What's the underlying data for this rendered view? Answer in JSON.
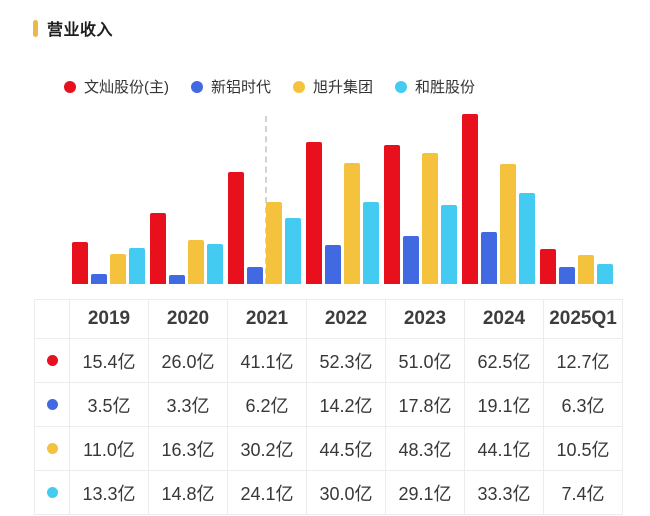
{
  "header": {
    "title": "营业收入"
  },
  "colors": {
    "title_marker": "#e9b949",
    "series_red": "#e8101c",
    "series_blue": "#4169e1",
    "series_yellow": "#f4c23d",
    "series_cyan": "#44cbf1",
    "dashed_line": "#d2d2d2",
    "table_border": "#ececec"
  },
  "chart_data": {
    "type": "bar",
    "title": "营业收入",
    "unit": "亿",
    "categories": [
      "2019",
      "2020",
      "2021",
      "2022",
      "2023",
      "2024",
      "2025Q1"
    ],
    "series": [
      {
        "name": "文灿股份(主)",
        "color": "#e8101c",
        "values": [
          15.4,
          26.0,
          41.1,
          52.3,
          51.0,
          62.5,
          12.7
        ]
      },
      {
        "name": "新铝时代",
        "color": "#4169e1",
        "values": [
          3.5,
          3.3,
          6.2,
          14.2,
          17.8,
          19.1,
          6.3
        ]
      },
      {
        "name": "旭升集团",
        "color": "#f4c23d",
        "values": [
          11.0,
          16.3,
          30.2,
          44.5,
          48.3,
          44.1,
          10.5
        ]
      },
      {
        "name": "和胜股份",
        "color": "#44cbf1",
        "values": [
          13.3,
          14.8,
          24.1,
          30.0,
          29.1,
          33.3,
          7.4
        ]
      }
    ],
    "ylim": [
      0,
      62.5
    ],
    "grid": false,
    "legend_position": "top",
    "annotations": [
      "vertical dashed divider line inside the 2021 group, before the yellow bar"
    ]
  },
  "table": {
    "columns": [
      "2019",
      "2020",
      "2021",
      "2022",
      "2023",
      "2024",
      "2025Q1"
    ],
    "rows": [
      {
        "series": "文灿股份(主)",
        "color": "#e8101c",
        "values": [
          "15.4亿",
          "26.0亿",
          "41.1亿",
          "52.3亿",
          "51.0亿",
          "62.5亿",
          "12.7亿"
        ]
      },
      {
        "series": "新铝时代",
        "color": "#4169e1",
        "values": [
          "3.5亿",
          "3.3亿",
          "6.2亿",
          "14.2亿",
          "17.8亿",
          "19.1亿",
          "6.3亿"
        ]
      },
      {
        "series": "旭升集团",
        "color": "#f4c23d",
        "values": [
          "11.0亿",
          "16.3亿",
          "30.2亿",
          "44.5亿",
          "48.3亿",
          "44.1亿",
          "10.5亿"
        ]
      },
      {
        "series": "和胜股份",
        "color": "#44cbf1",
        "values": [
          "13.3亿",
          "14.8亿",
          "24.1亿",
          "30.0亿",
          "29.1亿",
          "33.3亿",
          "7.4亿"
        ]
      }
    ]
  }
}
